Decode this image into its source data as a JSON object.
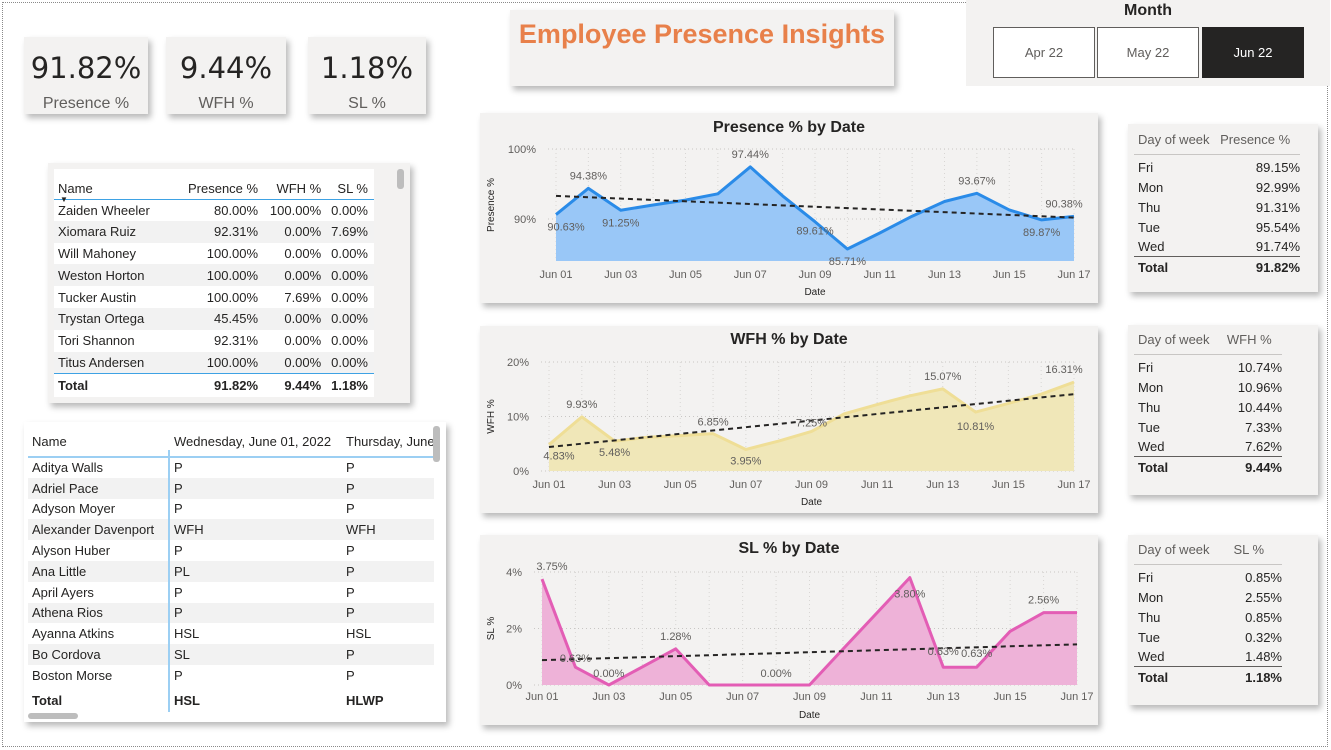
{
  "title": "Employee Presence Insights",
  "kpis": [
    {
      "value": "91.82%",
      "label": "Presence %"
    },
    {
      "value": "9.44%",
      "label": "WFH %"
    },
    {
      "value": "1.18%",
      "label": "SL %"
    }
  ],
  "month_slicer": {
    "title": "Month",
    "options": [
      "Apr 22",
      "May 22",
      "Jun 22"
    ],
    "selected": "Jun 22"
  },
  "employee_table": {
    "headers": [
      "Name",
      "Presence %",
      "WFH %",
      "SL %"
    ],
    "rows": [
      [
        "Zaiden Wheeler",
        "80.00%",
        "100.00%",
        "0.00%"
      ],
      [
        "Xiomara Ruiz",
        "92.31%",
        "0.00%",
        "7.69%"
      ],
      [
        "Will Mahoney",
        "100.00%",
        "0.00%",
        "0.00%"
      ],
      [
        "Weston Horton",
        "100.00%",
        "0.00%",
        "0.00%"
      ],
      [
        "Tucker Austin",
        "100.00%",
        "7.69%",
        "0.00%"
      ],
      [
        "Trystan Ortega",
        "45.45%",
        "0.00%",
        "0.00%"
      ],
      [
        "Tori Shannon",
        "92.31%",
        "0.00%",
        "0.00%"
      ],
      [
        "Titus Andersen",
        "100.00%",
        "0.00%",
        "0.00%"
      ]
    ],
    "total": [
      "Total",
      "91.82%",
      "9.44%",
      "1.18%"
    ]
  },
  "attendance_matrix": {
    "headers": [
      "Name",
      "Wednesday, June 01, 2022",
      "Thursday, June"
    ],
    "rows": [
      [
        "Aditya Walls",
        "P",
        "P"
      ],
      [
        "Adriel Pace",
        "P",
        "P"
      ],
      [
        "Adyson Moyer",
        "P",
        "P"
      ],
      [
        "Alexander Davenport",
        "WFH",
        "WFH"
      ],
      [
        "Alyson Huber",
        "P",
        "P"
      ],
      [
        "Ana Little",
        "PL",
        "P"
      ],
      [
        "April Ayers",
        "P",
        "P"
      ],
      [
        "Athena Rios",
        "P",
        "P"
      ],
      [
        "Ayanna Atkins",
        "HSL",
        "HSL"
      ],
      [
        "Bo Cordova",
        "SL",
        "P"
      ],
      [
        "Boston Morse",
        "P",
        "P"
      ]
    ],
    "total": [
      "Total",
      "HSL",
      "HLWP"
    ]
  },
  "day_tables": [
    {
      "headers": [
        "Day of week",
        "Presence %"
      ],
      "rows": [
        [
          "Fri",
          "89.15%"
        ],
        [
          "Mon",
          "92.99%"
        ],
        [
          "Thu",
          "91.31%"
        ],
        [
          "Tue",
          "95.54%"
        ],
        [
          "Wed",
          "91.74%"
        ]
      ],
      "total": [
        "Total",
        "91.82%"
      ]
    },
    {
      "headers": [
        "Day of week",
        "WFH %"
      ],
      "rows": [
        [
          "Fri",
          "10.74%"
        ],
        [
          "Mon",
          "10.96%"
        ],
        [
          "Thu",
          "10.44%"
        ],
        [
          "Tue",
          "7.33%"
        ],
        [
          "Wed",
          "7.62%"
        ]
      ],
      "total": [
        "Total",
        "9.44%"
      ]
    },
    {
      "headers": [
        "Day of week",
        "SL %"
      ],
      "rows": [
        [
          "Fri",
          "0.85%"
        ],
        [
          "Mon",
          "2.55%"
        ],
        [
          "Thu",
          "0.85%"
        ],
        [
          "Tue",
          "0.32%"
        ],
        [
          "Wed",
          "1.48%"
        ]
      ],
      "total": [
        "Total",
        "1.18%"
      ]
    }
  ],
  "chart_data": [
    {
      "type": "area",
      "title": "Presence % by Date",
      "xlabel": "Date",
      "ylabel": "Presence %",
      "x": [
        "Jun 01",
        "Jun 02",
        "Jun 03",
        "Jun 04",
        "Jun 05",
        "Jun 06",
        "Jun 07",
        "Jun 08",
        "Jun 09",
        "Jun 10",
        "Jun 11",
        "Jun 12",
        "Jun 13",
        "Jun 14",
        "Jun 15",
        "Jun 16",
        "Jun 17"
      ],
      "x_ticks": [
        "Jun 01",
        "Jun 03",
        "Jun 05",
        "Jun 07",
        "Jun 09",
        "Jun 11",
        "Jun 13",
        "Jun 15",
        "Jun 17"
      ],
      "values": [
        90.63,
        94.38,
        91.25,
        92.0,
        92.7,
        93.6,
        97.44,
        93.3,
        89.61,
        85.71,
        88.0,
        90.4,
        92.5,
        93.67,
        91.3,
        89.87,
        90.38
      ],
      "labels": {
        "0": "90.63%",
        "1": "94.38%",
        "2": "91.25%",
        "6": "97.44%",
        "8": "89.61%",
        "9": "85.71%",
        "13": "93.67%",
        "15": "89.87%",
        "16": "90.38%"
      },
      "ylim": [
        84,
        100
      ],
      "y_ticks": [
        {
          "v": 100,
          "label": "100%"
        },
        {
          "v": 90,
          "label": "90%"
        }
      ],
      "trend": [
        93.3,
        90.2
      ],
      "color": "#2a8be8",
      "fill": "#99c7f7",
      "grid": true
    },
    {
      "type": "area",
      "title": "WFH % by Date",
      "xlabel": "Date",
      "ylabel": "WFH %",
      "x": [
        "Jun 01",
        "Jun 02",
        "Jun 03",
        "Jun 04",
        "Jun 05",
        "Jun 06",
        "Jun 07",
        "Jun 08",
        "Jun 09",
        "Jun 10",
        "Jun 11",
        "Jun 12",
        "Jun 13",
        "Jun 14",
        "Jun 15",
        "Jun 16",
        "Jun 17"
      ],
      "x_ticks": [
        "Jun 01",
        "Jun 03",
        "Jun 05",
        "Jun 07",
        "Jun 09",
        "Jun 11",
        "Jun 13",
        "Jun 15",
        "Jun 17"
      ],
      "values": [
        4.83,
        9.93,
        5.48,
        6.2,
        6.5,
        6.85,
        3.95,
        5.5,
        7.25,
        10.5,
        12.2,
        13.8,
        15.07,
        10.81,
        12.4,
        14.1,
        16.31
      ],
      "labels": {
        "0": "4.83%",
        "1": "9.93%",
        "2": "5.48%",
        "5": "6.85%",
        "6": "3.95%",
        "8": "7.25%",
        "12": "15.07%",
        "13": "10.81%",
        "16": "16.31%"
      },
      "ylim": [
        0,
        20
      ],
      "y_ticks": [
        {
          "v": 20,
          "label": "20%"
        },
        {
          "v": 10,
          "label": "10%"
        },
        {
          "v": 0,
          "label": "0%"
        }
      ],
      "trend": [
        4.4,
        14.1
      ],
      "color": "#efde96",
      "fill": "#f0e7b8",
      "grid": true
    },
    {
      "type": "area",
      "title": "SL % by Date",
      "xlabel": "Date",
      "ylabel": "SL %",
      "x": [
        "Jun 01",
        "Jun 02",
        "Jun 03",
        "Jun 04",
        "Jun 05",
        "Jun 06",
        "Jun 07",
        "Jun 08",
        "Jun 09",
        "Jun 10",
        "Jun 11",
        "Jun 12",
        "Jun 13",
        "Jun 14",
        "Jun 15",
        "Jun 16",
        "Jun 17"
      ],
      "x_ticks": [
        "Jun 01",
        "Jun 03",
        "Jun 05",
        "Jun 07",
        "Jun 09",
        "Jun 11",
        "Jun 13",
        "Jun 15",
        "Jun 17"
      ],
      "values": [
        3.75,
        0.63,
        0.0,
        0.64,
        1.28,
        0.0,
        0.0,
        0.0,
        0.0,
        1.27,
        2.53,
        3.8,
        0.63,
        0.63,
        1.9,
        2.56,
        2.56
      ],
      "labels": {
        "0": "3.75%",
        "1": "0.63%",
        "2": "0.00%",
        "4": "1.28%",
        "7": "0.00%",
        "11": "3.80%",
        "12": "0.63%",
        "13": "0.63%",
        "15": "2.56%"
      },
      "ylim": [
        0,
        4
      ],
      "y_ticks": [
        {
          "v": 4,
          "label": "4%"
        },
        {
          "v": 2,
          "label": "2%"
        },
        {
          "v": 0,
          "label": "0%"
        }
      ],
      "trend": [
        0.88,
        1.44
      ],
      "color": "#e35db5",
      "fill": "#eeb2d8",
      "grid": true
    }
  ]
}
